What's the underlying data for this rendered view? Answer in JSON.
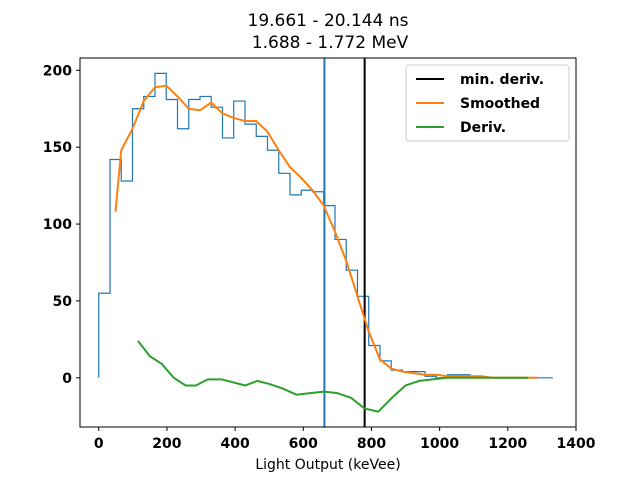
{
  "chart_data": {
    "type": "line",
    "title": "19.661 - 20.144 ns",
    "subtitle": "1.688 - 1.772 MeV",
    "xlabel": "Light Output (keVee)",
    "ylabel": "",
    "xlim": [
      -55,
      1400
    ],
    "ylim": [
      -32,
      208
    ],
    "xticks": [
      0,
      200,
      400,
      600,
      800,
      1000,
      1200,
      1400
    ],
    "yticks": [
      0,
      50,
      100,
      150,
      200
    ],
    "grid": false,
    "legend_position": "top-right",
    "histogram": {
      "edges": [
        0,
        33,
        66,
        99,
        132,
        165,
        198,
        231,
        264,
        297,
        330,
        363,
        396,
        429,
        462,
        495,
        528,
        561,
        594,
        627,
        660,
        693,
        726,
        759,
        792,
        825,
        858,
        891,
        924,
        957,
        990,
        1023,
        1056,
        1089,
        1122,
        1155,
        1188,
        1221,
        1254,
        1287,
        1320,
        1332
      ],
      "counts": [
        55,
        142,
        128,
        175,
        183,
        198,
        181,
        162,
        181,
        183,
        176,
        156,
        180,
        165,
        157,
        148,
        133,
        119,
        122,
        121,
        112,
        90,
        70,
        53,
        21,
        11,
        5,
        4,
        4,
        1,
        0,
        2,
        2,
        1,
        0,
        0,
        0,
        0,
        0,
        0,
        0
      ],
      "color": "#1f77b4"
    },
    "vlines": [
      {
        "x": 662,
        "color": "#1f77b4"
      },
      {
        "name": "min. deriv.",
        "x": 780,
        "color": "#000000"
      }
    ],
    "series": [
      {
        "name": "Smoothed",
        "color": "#ff7f0e",
        "x": [
          49,
          66,
          99,
          132,
          165,
          198,
          231,
          264,
          297,
          330,
          363,
          396,
          429,
          462,
          495,
          528,
          561,
          594,
          627,
          660,
          693,
          726,
          759,
          792,
          825,
          858,
          891,
          924,
          957,
          990,
          1023,
          1056,
          1089,
          1122,
          1155,
          1188,
          1221,
          1254,
          1287
        ],
        "y": [
          108,
          148,
          162,
          180,
          189,
          190,
          183,
          175,
          174,
          179,
          172,
          169,
          167,
          167,
          160,
          148,
          137,
          130,
          122,
          112,
          95,
          76,
          53,
          30,
          12,
          6,
          4,
          3,
          2,
          2,
          1,
          1,
          1,
          1,
          0,
          0,
          0,
          0,
          0
        ]
      },
      {
        "name": "Deriv.",
        "color": "#2ca02c",
        "x": [
          115,
          150,
          185,
          220,
          255,
          285,
          320,
          360,
          395,
          430,
          465,
          500,
          540,
          580,
          620,
          660,
          700,
          740,
          780,
          820,
          860,
          900,
          940,
          980,
          1020,
          1060,
          1100,
          1150,
          1200,
          1260
        ],
        "y": [
          24,
          14,
          9,
          0,
          -5,
          -5,
          -1,
          -1,
          -3,
          -5,
          -2,
          -4,
          -7,
          -11,
          -10,
          -9,
          -10,
          -13,
          -20,
          -22,
          -13,
          -5,
          -2,
          -1,
          0,
          0,
          0,
          0,
          0,
          0
        ]
      }
    ],
    "legend": [
      {
        "name": "min. deriv.",
        "color": "#000000"
      },
      {
        "name": "Smoothed",
        "color": "#ff7f0e"
      },
      {
        "name": "Deriv.",
        "color": "#2ca02c"
      }
    ]
  }
}
